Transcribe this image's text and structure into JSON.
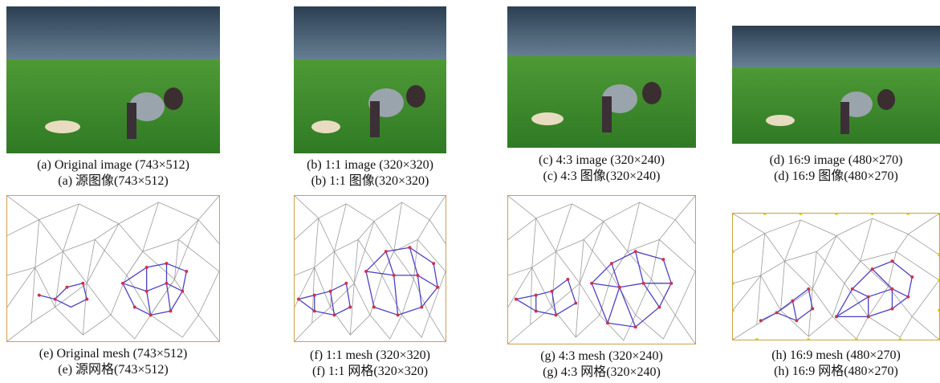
{
  "panels": [
    {
      "id": "a",
      "caption_en": "(a) Original image (743×512)",
      "caption_zh": "(a)  源图像(743×512)"
    },
    {
      "id": "b",
      "caption_en": "(b) 1:1 image (320×320)",
      "caption_zh": "(b) 1:1 图像(320×320)"
    },
    {
      "id": "c",
      "caption_en": "(c) 4:3 image (320×240)",
      "caption_zh": "(c) 4:3 图像(320×240)"
    },
    {
      "id": "d",
      "caption_en": "(d) 16:9 image (480×270)",
      "caption_zh": "(d) 16:9 图像(480×270)"
    },
    {
      "id": "e",
      "caption_en": "(e) Original mesh (743×512)",
      "caption_zh": "(e)  源网格(743×512)"
    },
    {
      "id": "f",
      "caption_en": "(f) 1:1 mesh (320×320)",
      "caption_zh": "(f) 1:1 网格(320×320)"
    },
    {
      "id": "g",
      "caption_en": "(g) 4:3 mesh (320×240)",
      "caption_zh": "(g) 4:3 网格(320×240)"
    },
    {
      "id": "h",
      "caption_en": "(h) 16:9 mesh (480×270)",
      "caption_zh": "(h) 16:9 网格(480×270)"
    }
  ],
  "colors": {
    "sky": "#2f4a5e",
    "grass": "#3f8a2e",
    "mesh_line": "#9a9a9a",
    "highlight_line": "#4b3fc4",
    "highlight_node": "#d0304a",
    "border_node": "#e0a020"
  }
}
